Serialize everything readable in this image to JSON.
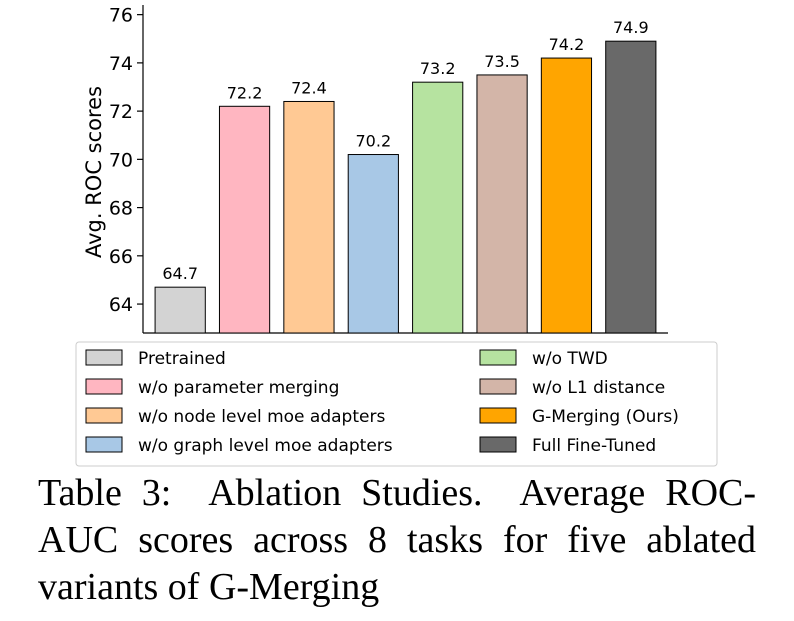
{
  "chart_data": {
    "type": "bar",
    "title": "",
    "xlabel": "",
    "ylabel": "Avg. ROC scores",
    "ylim": [
      62.8,
      76.4
    ],
    "yticks": [
      64,
      66,
      68,
      70,
      72,
      74,
      76
    ],
    "categories": [
      "Pretrained",
      "w/o parameter merging",
      "w/o node level moe adapters",
      "w/o graph level moe adapters",
      "w/o TWD",
      "w/o L1 distance",
      "G-Merging (Ours)",
      "Full Fine-Tuned"
    ],
    "values": [
      64.7,
      72.2,
      72.4,
      70.2,
      73.2,
      73.5,
      74.2,
      74.9
    ],
    "value_labels": [
      "64.7",
      "72.2",
      "72.4",
      "70.2",
      "73.2",
      "73.5",
      "74.2",
      "74.9"
    ],
    "colors": [
      "#d3d3d3",
      "#ffb6c1",
      "#ffc994",
      "#a8c8e6",
      "#b6e3a0",
      "#d3b5a8",
      "#ffa500",
      "#696969"
    ],
    "legend_position": "bottom",
    "grid": false
  },
  "caption": {
    "label": "Table 3:",
    "text_part1": "Ablation Studies.",
    "text_part2": "Average ROC-AUC scores across 8 tasks for five ablated variants of G-Merging"
  }
}
